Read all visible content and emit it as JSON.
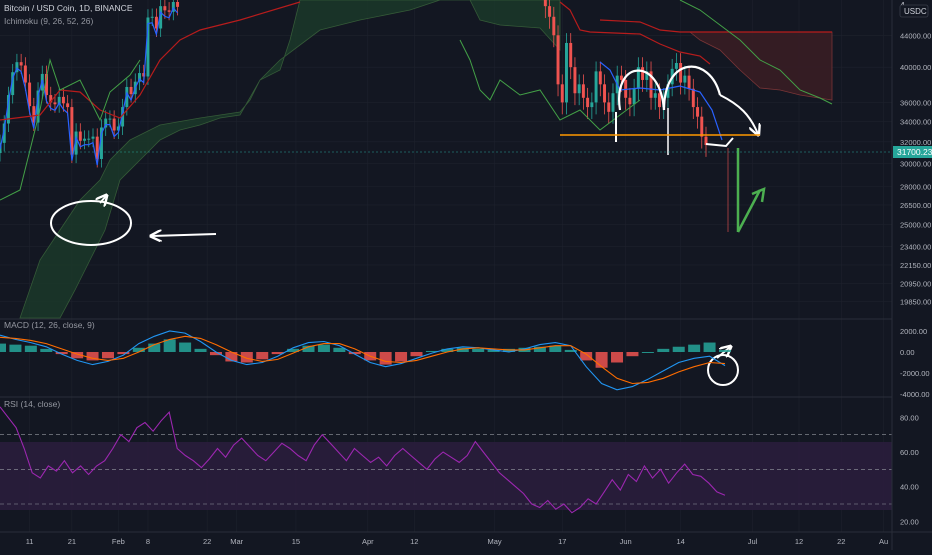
{
  "header": {
    "symbol_title": "Bitcoin / USD Coin, 1D, BINANCE",
    "ichimoku_label": "Ichimoku (9, 26, 52, 26)",
    "currency_badge": "USDC",
    "partial_top_tick": "4"
  },
  "colors": {
    "background": "#131722",
    "bull": "#26a69a",
    "bear": "#ef5350",
    "conversion_line": "#2962ff",
    "base_line": "#b71c1c",
    "lagging_span": "#43a047",
    "cloud_bull": "#1b5e20",
    "cloud_bear": "#4a1c1c",
    "macd_line": "#2196f3",
    "signal_line": "#ff6d00",
    "rsi_line": "#9c27b0",
    "rsi_band": "#2a1d3c",
    "neckline": "#ff9800",
    "drawing": "#ffffff",
    "target_arrow": "#4caf50",
    "price_tag": "#26a69a"
  },
  "icons": [
    "white-freehand-drawing",
    "green-target-arrow"
  ],
  "chart_data": [
    {
      "type": "candlestick",
      "title": "Bitcoin / USD Coin, 1D, BINANCE",
      "indicator": "Ichimoku (9, 26, 52, 26)",
      "currency": "USDC",
      "last_price": "31700.23",
      "y_scale": "log",
      "ylim": [
        18900,
        48600
      ],
      "y_ticks": [
        "44000.00",
        "40000.00",
        "36000.00",
        "34000.00",
        "32000.00",
        "30000.00",
        "28000.00",
        "26500.00",
        "25000.00",
        "23400.00",
        "22150.00",
        "20950.00",
        "19850.00"
      ],
      "x_ticks": [
        "11",
        "21",
        "Feb",
        "8",
        "22",
        "Mar",
        "15",
        "Apr",
        "12",
        "May",
        "17",
        "Jun",
        "14",
        "Jul",
        "12",
        "22",
        "Au"
      ],
      "x_range": [
        "2021-01-04",
        "2021-08-03"
      ],
      "closes": [
        [
          "2021-01-04",
          31900
        ],
        [
          "2021-01-05",
          33800
        ],
        [
          "2021-01-06",
          36800
        ],
        [
          "2021-01-07",
          39400
        ],
        [
          "2021-01-08",
          40600
        ],
        [
          "2021-01-09",
          40200
        ],
        [
          "2021-01-10",
          38200
        ],
        [
          "2021-01-11",
          35600
        ],
        [
          "2021-01-12",
          33900
        ],
        [
          "2021-01-13",
          37300
        ],
        [
          "2021-01-14",
          39200
        ],
        [
          "2021-01-15",
          36800
        ],
        [
          "2021-01-16",
          36000
        ],
        [
          "2021-01-17",
          35800
        ],
        [
          "2021-01-18",
          36600
        ],
        [
          "2021-01-19",
          35900
        ],
        [
          "2021-01-20",
          35500
        ],
        [
          "2021-01-21",
          30800
        ],
        [
          "2021-01-22",
          33000
        ],
        [
          "2021-01-23",
          32100
        ],
        [
          "2021-01-24",
          32300
        ],
        [
          "2021-01-25",
          32300
        ],
        [
          "2021-01-26",
          32500
        ],
        [
          "2021-01-27",
          30400
        ],
        [
          "2021-01-28",
          33400
        ],
        [
          "2021-01-29",
          34300
        ],
        [
          "2021-01-30",
          34300
        ],
        [
          "2021-01-31",
          33100
        ],
        [
          "2021-02-01",
          33500
        ],
        [
          "2021-02-02",
          35500
        ],
        [
          "2021-02-03",
          37700
        ],
        [
          "2021-02-04",
          36900
        ],
        [
          "2021-02-05",
          38300
        ],
        [
          "2021-02-06",
          39300
        ],
        [
          "2021-02-07",
          38900
        ],
        [
          "2021-02-08",
          46400
        ],
        [
          "2021-02-09",
          46500
        ],
        [
          "2021-02-10",
          44900
        ],
        [
          "2021-02-11",
          48000
        ],
        [
          "2021-02-12",
          47400
        ],
        [
          "2021-02-13",
          47200
        ],
        [
          "2021-02-14",
          48600
        ],
        [
          "2021-02-15",
          47900
        ]
      ],
      "last_close": [
        "2021-06-21",
        31700
      ],
      "annotations": [
        "white-ellipse-on-cloud-edge",
        "white-arrow-left",
        "double-top-arcs",
        "orange-neckline-33200",
        "green-target-arrow-to-25000"
      ]
    },
    {
      "type": "histogram-line",
      "title": "MACD (12, 26, close, 9)",
      "y_ticks": [
        "2000.00",
        "0.00",
        "-2000.00",
        "-4000.00"
      ],
      "ylim": [
        -4000,
        2800
      ],
      "series": [
        {
          "values": [
            800,
            700,
            600,
            300,
            -200,
            -600,
            -800,
            -600,
            -200,
            400,
            800,
            1200,
            900,
            300,
            -300,
            -900,
            -1000,
            -700,
            -200,
            300,
            600,
            700,
            400,
            -200,
            -800,
            -1200,
            -900,
            -400,
            100,
            300,
            400,
            300,
            200,
            300,
            400,
            500,
            600,
            200,
            -800,
            -1500,
            -1000,
            -400,
            0,
            300,
            500,
            700,
            900,
            200
          ]
        },
        {
          "values": [
            1600,
            1200,
            900,
            500,
            -200,
            -800,
            -1200,
            -900,
            -300,
            800,
            1500,
            2000,
            1800,
            1000,
            0,
            -800,
            -1200,
            -1000,
            -400,
            400,
            900,
            1000,
            600,
            -200,
            -1000,
            -1400,
            -1100,
            -600,
            -100,
            300,
            500,
            400,
            200,
            0,
            300,
            700,
            900,
            600,
            -1400,
            -3000,
            -3600,
            -3300,
            -2600,
            -1800,
            -1000,
            -600,
            -400,
            -1300
          ]
        },
        {
          "values": [
            1400,
            1300,
            1100,
            800,
            300,
            -200,
            -600,
            -800,
            -600,
            0,
            700,
            1200,
            1500,
            1300,
            700,
            0,
            -600,
            -900,
            -700,
            -100,
            500,
            800,
            800,
            300,
            -400,
            -900,
            -1000,
            -800,
            -400,
            0,
            300,
            400,
            300,
            200,
            200,
            400,
            600,
            600,
            -200,
            -1400,
            -2500,
            -3000,
            -2900,
            -2500,
            -1900,
            -1400,
            -1000,
            -1100
          ]
        }
      ],
      "annotation": "white-circle-at-macd-crossover"
    },
    {
      "type": "line",
      "title": "RSI (14, close)",
      "y_ticks": [
        "80.00",
        "60.00",
        "40.00",
        "20.00"
      ],
      "ylim": [
        15,
        90
      ],
      "bands": [
        30,
        50,
        70
      ],
      "values": [
        86,
        80,
        74,
        62,
        48,
        45,
        52,
        49,
        55,
        48,
        52,
        47,
        52,
        55,
        62,
        70,
        66,
        74,
        77,
        72,
        78,
        83,
        62,
        58,
        55,
        51,
        56,
        62,
        57,
        64,
        68,
        63,
        58,
        55,
        60,
        65,
        62,
        58,
        55,
        64,
        70,
        65,
        60,
        55,
        62,
        58,
        54,
        57,
        52,
        58,
        62,
        58,
        54,
        50,
        56,
        60,
        57,
        54,
        58,
        66,
        60,
        54,
        48,
        44,
        40,
        36,
        30,
        28,
        32,
        27,
        30,
        25,
        28,
        33,
        30,
        37,
        44,
        38,
        47,
        43,
        52,
        45,
        50,
        42,
        48,
        53,
        47,
        46,
        42,
        37,
        35
      ]
    }
  ]
}
